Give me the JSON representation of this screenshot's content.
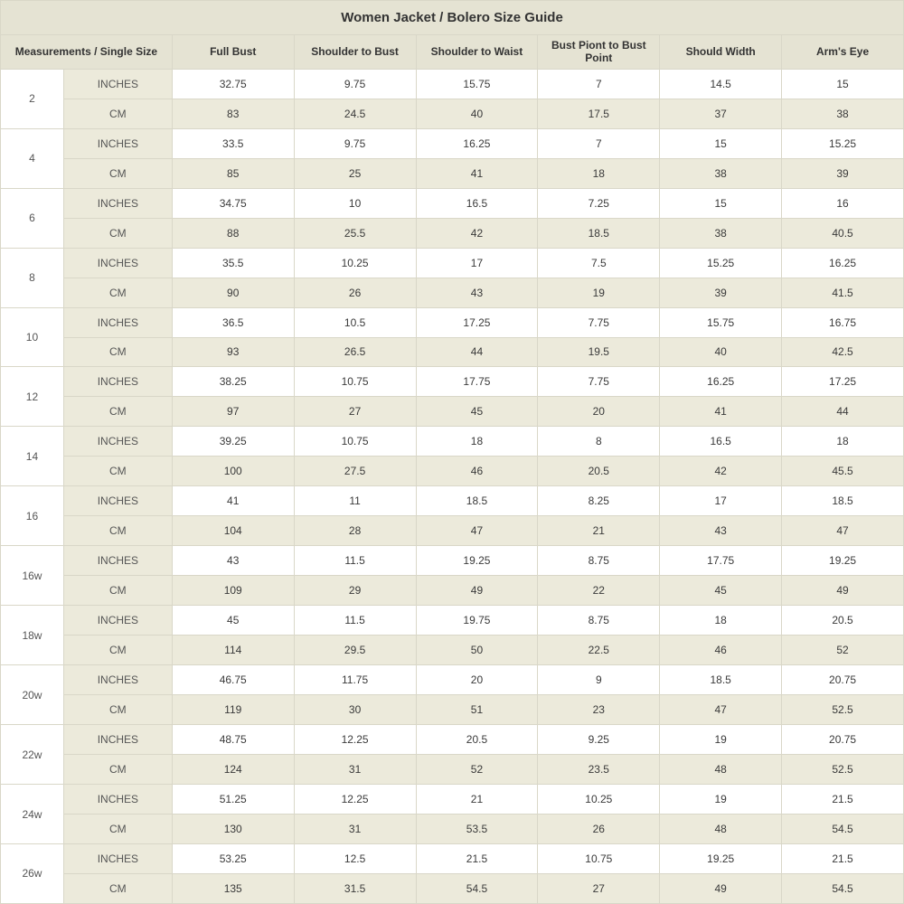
{
  "title": "Women Jacket / Bolero Size Guide",
  "headers": {
    "measurements": "Measurements / Single Size",
    "cols": [
      "Full Bust",
      "Shoulder to Bust",
      "Shoulder to Waist",
      "Bust Piont to Bust Point",
      "Should Width",
      "Arm's Eye"
    ]
  },
  "units": {
    "inches": "INCHES",
    "cm": "CM"
  },
  "col_widths": [
    "7%",
    "12%",
    "13.5%",
    "13.5%",
    "13.5%",
    "13.5%",
    "13.5%",
    "13.5%"
  ],
  "colors": {
    "header_bg": "#e5e3d3",
    "alt_bg": "#eceadb",
    "white_bg": "#ffffff",
    "border": "#d9d7c8",
    "text": "#3a3a3a"
  },
  "fonts": {
    "title_size": 15,
    "header_size": 12,
    "cell_size": 12
  },
  "sizes": [
    {
      "label": "2",
      "inches": [
        "32.75",
        "9.75",
        "15.75",
        "7",
        "14.5",
        "15"
      ],
      "cm": [
        "83",
        "24.5",
        "40",
        "17.5",
        "37",
        "38"
      ]
    },
    {
      "label": "4",
      "inches": [
        "33.5",
        "9.75",
        "16.25",
        "7",
        "15",
        "15.25"
      ],
      "cm": [
        "85",
        "25",
        "41",
        "18",
        "38",
        "39"
      ]
    },
    {
      "label": "6",
      "inches": [
        "34.75",
        "10",
        "16.5",
        "7.25",
        "15",
        "16"
      ],
      "cm": [
        "88",
        "25.5",
        "42",
        "18.5",
        "38",
        "40.5"
      ]
    },
    {
      "label": "8",
      "inches": [
        "35.5",
        "10.25",
        "17",
        "7.5",
        "15.25",
        "16.25"
      ],
      "cm": [
        "90",
        "26",
        "43",
        "19",
        "39",
        "41.5"
      ]
    },
    {
      "label": "10",
      "inches": [
        "36.5",
        "10.5",
        "17.25",
        "7.75",
        "15.75",
        "16.75"
      ],
      "cm": [
        "93",
        "26.5",
        "44",
        "19.5",
        "40",
        "42.5"
      ]
    },
    {
      "label": "12",
      "inches": [
        "38.25",
        "10.75",
        "17.75",
        "7.75",
        "16.25",
        "17.25"
      ],
      "cm": [
        "97",
        "27",
        "45",
        "20",
        "41",
        "44"
      ]
    },
    {
      "label": "14",
      "inches": [
        "39.25",
        "10.75",
        "18",
        "8",
        "16.5",
        "18"
      ],
      "cm": [
        "100",
        "27.5",
        "46",
        "20.5",
        "42",
        "45.5"
      ]
    },
    {
      "label": "16",
      "inches": [
        "41",
        "11",
        "18.5",
        "8.25",
        "17",
        "18.5"
      ],
      "cm": [
        "104",
        "28",
        "47",
        "21",
        "43",
        "47"
      ]
    },
    {
      "label": "16w",
      "inches": [
        "43",
        "11.5",
        "19.25",
        "8.75",
        "17.75",
        "19.25"
      ],
      "cm": [
        "109",
        "29",
        "49",
        "22",
        "45",
        "49"
      ]
    },
    {
      "label": "18w",
      "inches": [
        "45",
        "11.5",
        "19.75",
        "8.75",
        "18",
        "20.5"
      ],
      "cm": [
        "114",
        "29.5",
        "50",
        "22.5",
        "46",
        "52"
      ]
    },
    {
      "label": "20w",
      "inches": [
        "46.75",
        "11.75",
        "20",
        "9",
        "18.5",
        "20.75"
      ],
      "cm": [
        "119",
        "30",
        "51",
        "23",
        "47",
        "52.5"
      ]
    },
    {
      "label": "22w",
      "inches": [
        "48.75",
        "12.25",
        "20.5",
        "9.25",
        "19",
        "20.75"
      ],
      "cm": [
        "124",
        "31",
        "52",
        "23.5",
        "48",
        "52.5"
      ]
    },
    {
      "label": "24w",
      "inches": [
        "51.25",
        "12.25",
        "21",
        "10.25",
        "19",
        "21.5"
      ],
      "cm": [
        "130",
        "31",
        "53.5",
        "26",
        "48",
        "54.5"
      ]
    },
    {
      "label": "26w",
      "inches": [
        "53.25",
        "12.5",
        "21.5",
        "10.75",
        "19.25",
        "21.5"
      ],
      "cm": [
        "135",
        "31.5",
        "54.5",
        "27",
        "49",
        "54.5"
      ]
    }
  ]
}
